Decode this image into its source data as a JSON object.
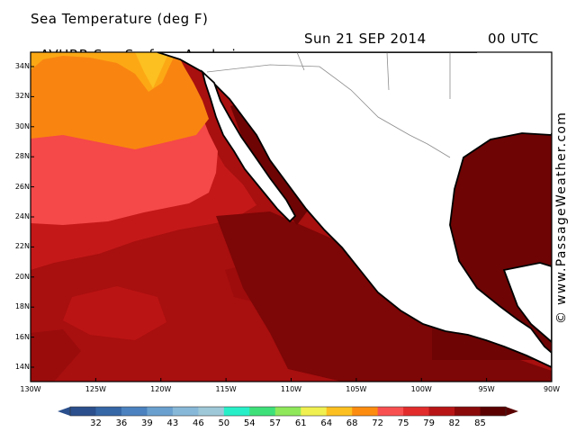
{
  "header": {
    "title": "Sea Temperature (deg F)",
    "subtitle": "AVHRR Sea Surface Analysis",
    "date": "Sun 21 SEP 2014",
    "time": "00 UTC"
  },
  "credit": "© www.PassageWeather.com",
  "map": {
    "region": "Eastern Pacific off Mexico / Gulf of Mexico",
    "lat_labels": [
      "34N",
      "32N",
      "30N",
      "28N",
      "26N",
      "24N",
      "22N",
      "20N",
      "18N",
      "16N",
      "14N"
    ],
    "lon_labels": [
      "130W",
      "125W",
      "120W",
      "115W",
      "110W",
      "105W",
      "100W",
      "95W",
      "90W"
    ],
    "colors": {
      "land": "#ffffff",
      "coast": "#000000",
      "borders": "#8c8c8c"
    }
  },
  "legend": {
    "values": [
      "32",
      "36",
      "39",
      "43",
      "46",
      "50",
      "54",
      "57",
      "61",
      "64",
      "68",
      "72",
      "75",
      "79",
      "82",
      "85"
    ],
    "colors": [
      "#2a4f8c",
      "#3566a6",
      "#4b82bf",
      "#69a0cf",
      "#88b8d8",
      "#9ec8d8",
      "#27f0c8",
      "#3ee07a",
      "#8ee85a",
      "#f0f050",
      "#fcc020",
      "#fc8c10",
      "#f85050",
      "#e22c2c",
      "#b81616",
      "#8a0a0a",
      "#5a0000"
    ]
  }
}
